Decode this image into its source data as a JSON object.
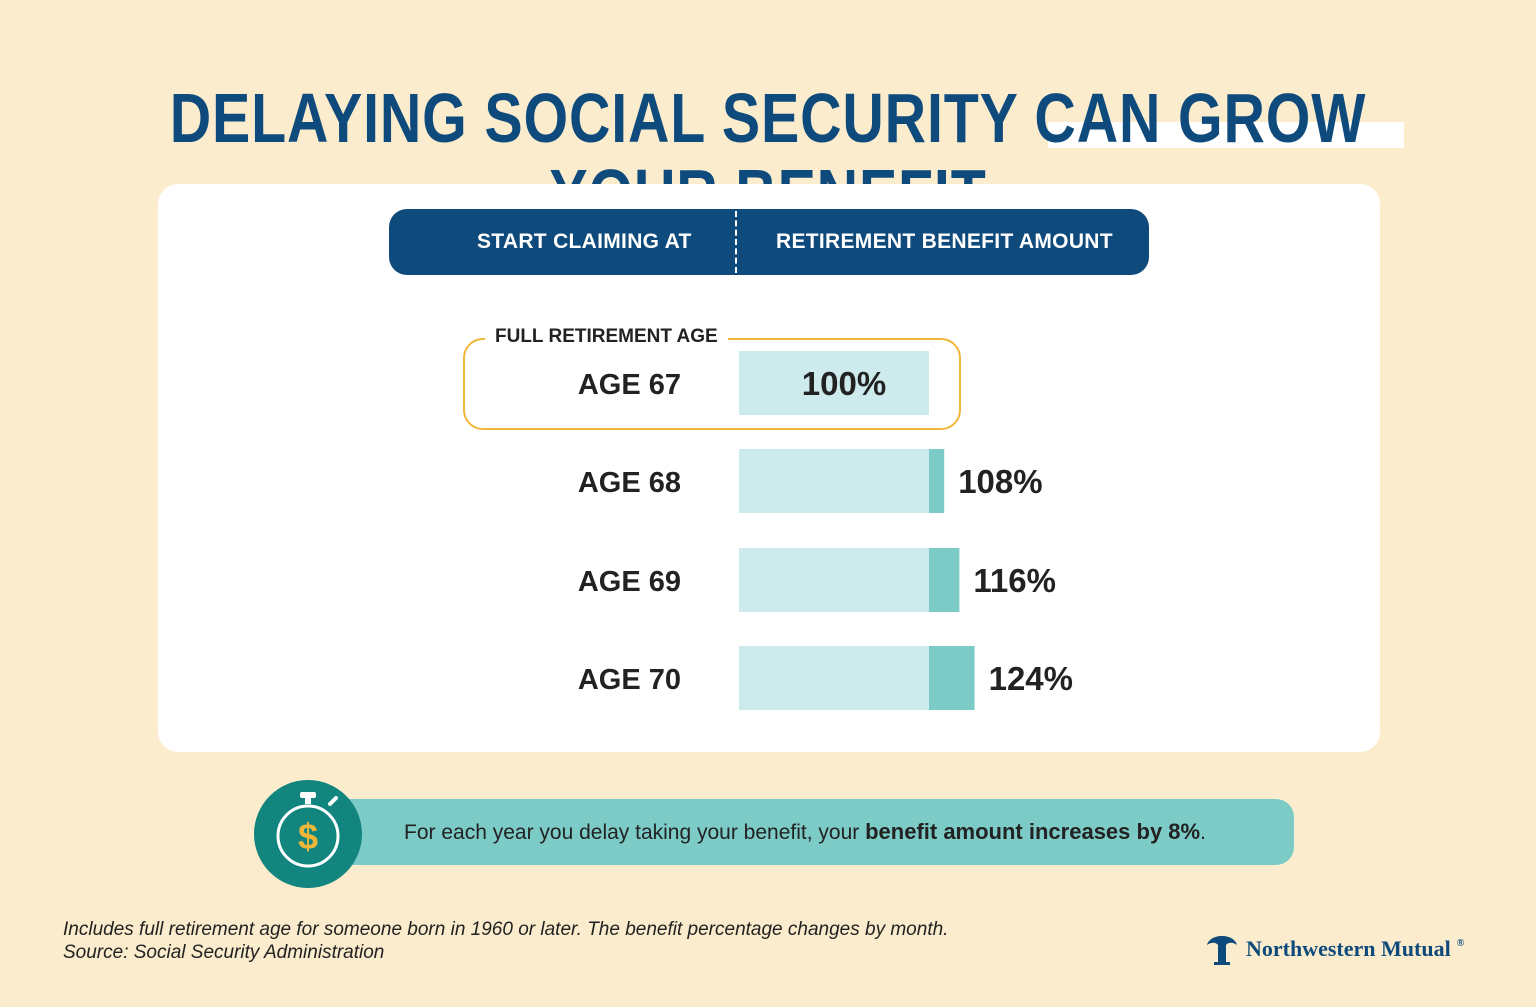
{
  "title": "DELAYING SOCIAL SECURITY CAN GROW YOUR BENEFIT",
  "table_header": {
    "left": "START CLAIMING AT",
    "right": "RETIREMENT BENEFIT AMOUNT"
  },
  "highlight_label": "FULL RETIREMENT AGE",
  "chart_data": {
    "type": "bar",
    "orientation": "horizontal",
    "categories": [
      "AGE 67",
      "AGE 68",
      "AGE 69",
      "AGE 70"
    ],
    "values": [
      100,
      108,
      116,
      124
    ],
    "value_labels": [
      "100%",
      "108%",
      "116%",
      "124%"
    ],
    "xlabel": "RETIREMENT BENEFIT AMOUNT",
    "ylabel": "START CLAIMING AT",
    "highlight_category": "AGE 67",
    "base_value": 100,
    "colors": {
      "base": "#cdeaec",
      "increase": "#7ccbc6",
      "text": "#222222"
    }
  },
  "callout": {
    "text_regular": "For each year you delay taking your benefit, your ",
    "text_bold": "benefit amount increases by 8%",
    "text_end": ".",
    "icon": "stopwatch-dollar-icon"
  },
  "footnote": {
    "line1": "Includes full retirement age for someone born in 1960 or later. The benefit percentage changes by month.",
    "line2": "Source: Social Security Administration"
  },
  "brand": {
    "name": "Northwestern Mutual",
    "mark": "®"
  },
  "colors": {
    "background": "#faeccd",
    "navy": "#0f4a7c",
    "teal": "#7ccbc6",
    "gold": "#f0b63a",
    "dark_teal": "#12857f"
  }
}
